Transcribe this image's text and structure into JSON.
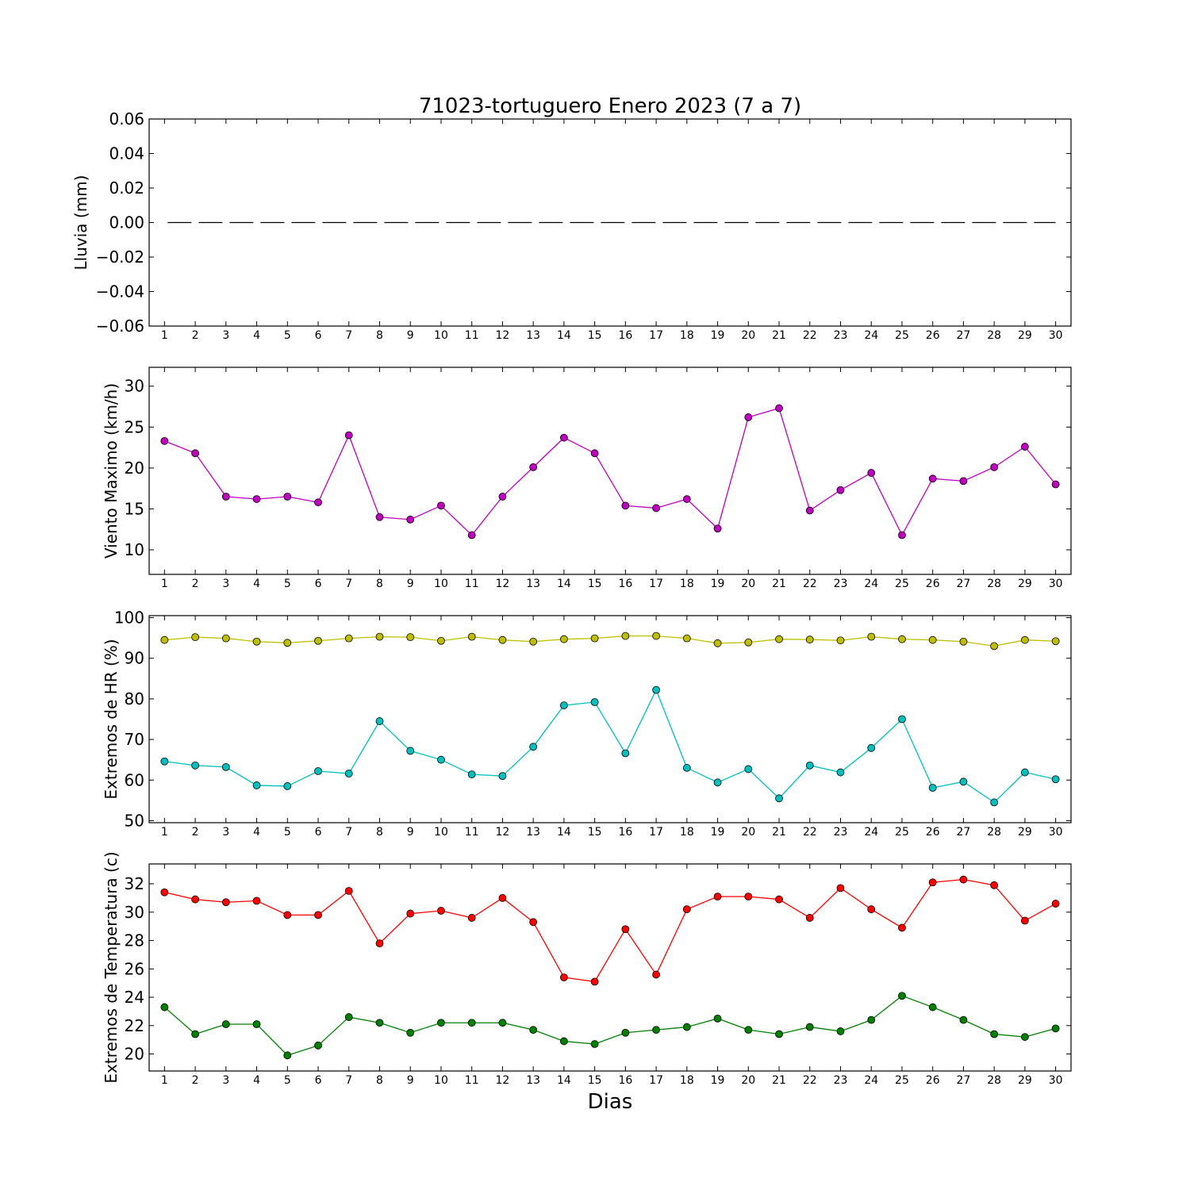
{
  "chart_data": {
    "type": "line",
    "title": "71023-tortuguero Enero 2023  (7 a 7)",
    "xlabel": "Dias",
    "x": [
      1,
      2,
      3,
      4,
      5,
      6,
      7,
      8,
      9,
      10,
      11,
      12,
      13,
      14,
      15,
      16,
      17,
      18,
      19,
      20,
      21,
      22,
      23,
      24,
      25,
      26,
      27,
      28,
      29,
      30
    ],
    "panels": [
      {
        "ylabel": "Lluvia (mm)",
        "ylim": [
          -0.06,
          0.06
        ],
        "yticks": [
          -0.06,
          -0.04,
          -0.02,
          0.0,
          0.02,
          0.04,
          0.06
        ],
        "ytick_labels": [
          "−0.06",
          "−0.04",
          "−0.02",
          "0.00",
          "0.02",
          "0.04",
          "0.06"
        ],
        "series": [
          {
            "style": "dashed",
            "color": "#000000",
            "markers": false,
            "values": [
              0,
              0,
              0,
              0,
              0,
              0,
              0,
              0,
              0,
              0,
              0,
              0,
              0,
              0,
              0,
              0,
              0,
              0,
              0,
              0,
              0,
              0,
              0,
              0,
              0,
              0,
              0,
              0,
              0,
              0
            ]
          }
        ]
      },
      {
        "ylabel": "Viento Maximo (km/h)",
        "ylim": [
          7,
          32.3
        ],
        "yticks": [
          10,
          15,
          20,
          25,
          30
        ],
        "ytick_labels": [
          "10",
          "15",
          "20",
          "25",
          "30"
        ],
        "series": [
          {
            "style": "solid",
            "color": "#bf00bf",
            "markers": true,
            "values": [
              23.3,
              21.8,
              16.5,
              16.2,
              16.5,
              15.8,
              24.0,
              14.0,
              13.7,
              15.4,
              11.8,
              16.5,
              20.1,
              23.7,
              21.8,
              15.4,
              15.1,
              16.2,
              12.6,
              26.2,
              27.3,
              14.8,
              17.3,
              19.4,
              11.8,
              18.7,
              18.4,
              20.1,
              22.6,
              18.0
            ]
          }
        ]
      },
      {
        "ylabel": "Extremos de HR (%)",
        "ylim": [
          49.5,
          100.5
        ],
        "yticks": [
          50,
          60,
          70,
          80,
          90,
          100
        ],
        "ytick_labels": [
          "50",
          "60",
          "70",
          "80",
          "90",
          "100"
        ],
        "series": [
          {
            "style": "solid",
            "color": "#bfbf00",
            "markers": true,
            "values": [
              94.5,
              95.2,
              94.9,
              94.1,
              93.8,
              94.3,
              94.9,
              95.3,
              95.2,
              94.3,
              95.3,
              94.5,
              94.1,
              94.7,
              94.9,
              95.5,
              95.5,
              94.9,
              93.7,
              93.9,
              94.7,
              94.6,
              94.4,
              95.3,
              94.7,
              94.5,
              94.1,
              93.0,
              94.5,
              94.2
            ]
          },
          {
            "style": "solid",
            "color": "#00bfbf",
            "markers": true,
            "values": [
              64.6,
              63.6,
              63.2,
              58.7,
              58.5,
              62.2,
              61.6,
              74.5,
              67.2,
              65.0,
              61.4,
              61.0,
              68.2,
              78.4,
              79.2,
              66.6,
              82.2,
              63.0,
              59.4,
              62.7,
              55.5,
              63.6,
              61.9,
              67.9,
              75.0,
              58.1,
              59.6,
              54.5,
              61.9,
              60.2
            ]
          }
        ]
      },
      {
        "ylabel": "Extremos de Temperatura (c)",
        "ylim": [
          18.8,
          33.4
        ],
        "yticks": [
          20,
          22,
          24,
          26,
          28,
          30,
          32
        ],
        "ytick_labels": [
          "20",
          "22",
          "24",
          "26",
          "28",
          "30",
          "32"
        ],
        "series": [
          {
            "style": "solid",
            "color": "#ff0000",
            "markers": true,
            "values": [
              31.4,
              30.9,
              30.7,
              30.8,
              29.8,
              29.8,
              31.5,
              27.8,
              29.9,
              30.1,
              29.6,
              31.0,
              29.3,
              25.4,
              25.1,
              28.8,
              25.6,
              30.2,
              31.1,
              31.1,
              30.9,
              29.6,
              31.7,
              30.2,
              28.9,
              32.1,
              32.3,
              31.9,
              29.4,
              30.6
            ]
          },
          {
            "style": "solid",
            "color": "#008000",
            "markers": true,
            "values": [
              23.3,
              21.4,
              22.1,
              22.1,
              19.9,
              20.6,
              22.6,
              22.2,
              21.5,
              22.2,
              22.2,
              22.2,
              21.7,
              20.9,
              20.7,
              21.5,
              21.7,
              21.9,
              22.5,
              21.7,
              21.4,
              21.9,
              21.6,
              22.4,
              24.1,
              23.3,
              22.4,
              21.4,
              21.2,
              21.8
            ]
          }
        ]
      }
    ]
  }
}
